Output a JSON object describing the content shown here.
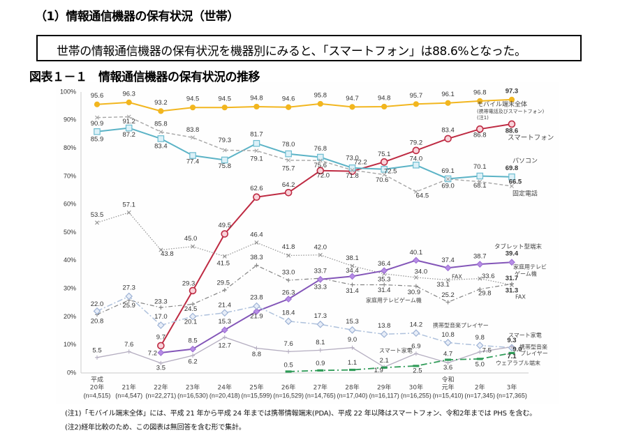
{
  "page": {
    "section_title": "（1）情報通信機器の保有状況（世帯）",
    "summary": "世帯の情報通信機器の保有状況を機器別にみると、「スマートフォン」は88.6%となった。",
    "figure_title": "図表１－１　情報通信機器の保有状況の推移"
  },
  "chart_data": {
    "type": "line",
    "title": "情報通信機器の保有状況の推移",
    "xlabel": "",
    "ylabel": "",
    "ylim": [
      0,
      100
    ],
    "grid": false,
    "legend": "inline labels at right end of each series",
    "yticks": [
      "0%",
      "10%",
      "20%",
      "30%",
      "40%",
      "50%",
      "60%",
      "70%",
      "80%",
      "90%",
      "100%"
    ],
    "categories": [
      {
        "era": "平成",
        "year": "20年",
        "n": "(n=4,515)"
      },
      {
        "era": "",
        "year": "21年",
        "n": "(n=4,547)"
      },
      {
        "era": "",
        "year": "22年",
        "n": "(n=22,271)"
      },
      {
        "era": "",
        "year": "23年",
        "n": "(n=16,530)"
      },
      {
        "era": "",
        "year": "24年",
        "n": "(n=20,418)"
      },
      {
        "era": "",
        "year": "25年",
        "n": "(n=15,599)"
      },
      {
        "era": "",
        "year": "26年",
        "n": "(n=16,529)"
      },
      {
        "era": "",
        "year": "27年",
        "n": "(n=14,765)"
      },
      {
        "era": "",
        "year": "28年",
        "n": "(n=17,040)"
      },
      {
        "era": "",
        "year": "29年",
        "n": "(n=16,117)"
      },
      {
        "era": "",
        "year": "30年",
        "n": "(n=16,255)"
      },
      {
        "era": "令和",
        "year": "元年",
        "n": "(n=15,410)"
      },
      {
        "era": "",
        "year": "2年",
        "n": "(n=17,345)"
      },
      {
        "era": "",
        "year": "3年",
        "n": "(n=17,365)"
      }
    ],
    "series": [
      {
        "name": "モバイル端末全体",
        "label_lines": [
          "モバイル端末全体",
          "(携帯電話及びスマートフォン)",
          "(注1)"
        ],
        "extra_labels": [],
        "color": "#F2B61F",
        "marker": "circle",
        "values": [
          95.6,
          96.3,
          93.2,
          94.5,
          94.5,
          94.8,
          94.6,
          95.8,
          94.7,
          94.8,
          95.7,
          96.1,
          96.8,
          97.3
        ]
      },
      {
        "name": "スマートフォン",
        "label_lines": [
          "スマートフォン"
        ],
        "extra_labels": [],
        "color": "#BE2A42",
        "marker": "open-circle",
        "values": [
          null,
          null,
          9.7,
          29.3,
          49.5,
          62.6,
          64.2,
          72.0,
          71.8,
          75.1,
          79.2,
          83.4,
          86.8,
          88.6
        ]
      },
      {
        "name": "パソコン",
        "label_lines": [
          "パソコン"
        ],
        "extra_labels": [],
        "color": "#5BB3C6",
        "marker": "square",
        "values": [
          85.9,
          87.2,
          83.4,
          77.4,
          75.8,
          81.7,
          78.0,
          76.8,
          73.0,
          72.5,
          74.0,
          69.1,
          70.1,
          69.8
        ]
      },
      {
        "name": "固定電話",
        "label_lines": [
          "固定電話"
        ],
        "extra_labels": [],
        "color": "#A6A6A6",
        "marker": "x",
        "values": [
          90.9,
          91.2,
          85.8,
          83.8,
          79.3,
          79.1,
          75.7,
          75.6,
          72.2,
          70.6,
          64.5,
          69.0,
          68.1,
          66.5
        ]
      },
      {
        "name": "FAX",
        "label_lines": [
          "FAX"
        ],
        "extra_labels": [
          "FAX"
        ],
        "color": "#8F8F8F",
        "marker": "x",
        "values": [
          53.5,
          57.1,
          43.8,
          45.0,
          41.5,
          46.4,
          41.8,
          42.0,
          38.1,
          35.3,
          34.0,
          33.1,
          33.6,
          31.3
        ]
      },
      {
        "name": "家庭用テレビゲーム機",
        "label_lines": [
          "家庭用テレビ",
          "ゲーム機"
        ],
        "extra_labels": [
          "家庭用テレビゲーム機"
        ],
        "color": "#838383",
        "marker": "plus",
        "values": [
          20.8,
          25.9,
          23.3,
          24.5,
          29.5,
          38.3,
          33.0,
          33.7,
          31.4,
          31.4,
          30.9,
          25.2,
          29.8,
          31.7
        ]
      },
      {
        "name": "タブレット型端末",
        "label_lines": [
          "タブレット型端末"
        ],
        "extra_labels": [],
        "color": "#8355B8",
        "marker": "diamond",
        "values": [
          null,
          null,
          7.2,
          8.5,
          15.3,
          21.9,
          26.3,
          33.3,
          34.4,
          36.4,
          40.1,
          37.4,
          38.7,
          39.4
        ]
      },
      {
        "name": "携帯型音楽プレイヤー",
        "label_lines": [
          "携帯型音楽",
          "プレイヤー"
        ],
        "extra_labels": [
          "携帯型音楽プレイヤー"
        ],
        "color": "#AEC1DC",
        "marker": "open-diamond",
        "values": [
          22.0,
          27.3,
          17.0,
          20.1,
          21.4,
          23.8,
          18.4,
          17.3,
          15.3,
          13.8,
          14.2,
          10.8,
          9.8,
          9.0
        ]
      },
      {
        "name": "スマート家電",
        "label_lines": [
          "スマート家電"
        ],
        "extra_labels": [
          "スマート家電"
        ],
        "color": "#B4ADC0",
        "marker": "plus",
        "values": [
          5.5,
          7.6,
          3.5,
          6.2,
          12.7,
          8.8,
          7.6,
          8.1,
          9.0,
          2.1,
          6.9,
          3.6,
          7.5,
          9.3
        ]
      },
      {
        "name": "ウェアラブル端末",
        "label_lines": [
          "ウェアラブル端末"
        ],
        "extra_labels": [],
        "color": "#2E9B57",
        "marker": "dash",
        "values": [
          null,
          null,
          null,
          null,
          null,
          null,
          0.5,
          0.9,
          1.1,
          1.9,
          2.5,
          4.7,
          5.0,
          7.1
        ]
      }
    ]
  },
  "notes": [
    "(注1)「モバイル端末全体」には、平成 21 年から平成 24 年までは携帯情報端末(PDA)、平成 22 年以降はスマートフォン、令和2年までは PHS を含む。",
    "(注2)経年比較のため、この図表は無回答を含む形で集計。"
  ]
}
